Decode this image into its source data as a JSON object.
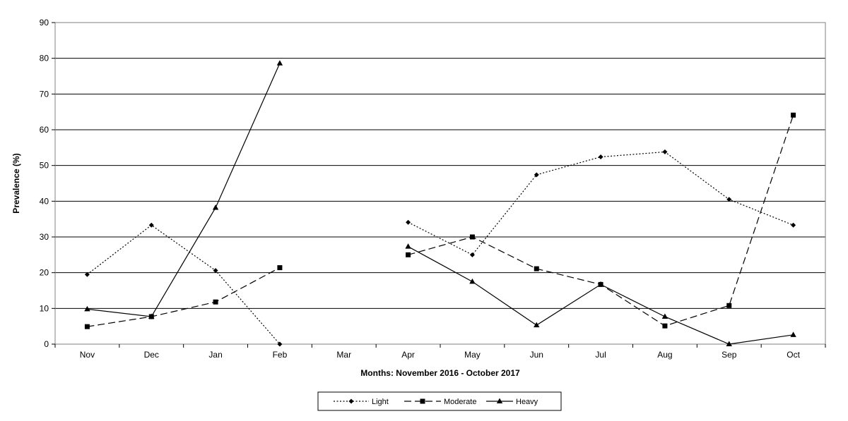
{
  "chart_data": {
    "type": "line",
    "title": "",
    "xlabel": "Months: November 2016 - October 2017",
    "ylabel": "Prevalence (%)",
    "ylim": [
      0,
      90
    ],
    "yticks": [
      0,
      10,
      20,
      30,
      40,
      50,
      60,
      70,
      80,
      90
    ],
    "grid": "horizontal",
    "legend_position": "bottom-center",
    "categories": [
      "Nov",
      "Dec",
      "Jan",
      "Feb",
      "Mar",
      "Apr",
      "May",
      "Jun",
      "Jul",
      "Aug",
      "Sep",
      "Oct"
    ],
    "series": [
      {
        "name": "Light",
        "line_style": "dotted",
        "marker": "diamond",
        "values": [
          19.5,
          33.3,
          20.6,
          0,
          null,
          34.1,
          25.0,
          47.4,
          52.4,
          53.8,
          40.5,
          33.3
        ]
      },
      {
        "name": "Moderate",
        "line_style": "dashed",
        "marker": "square",
        "values": [
          4.9,
          7.7,
          11.8,
          21.4,
          null,
          25.0,
          30.0,
          21.1,
          16.7,
          5.1,
          10.8,
          64.1
        ]
      },
      {
        "name": "Heavy",
        "line_style": "solid",
        "marker": "triangle",
        "values": [
          9.8,
          7.7,
          38.2,
          78.6,
          null,
          27.3,
          17.5,
          5.3,
          16.7,
          7.7,
          0,
          2.6
        ]
      }
    ]
  },
  "colors": {
    "line": "#000000",
    "grid": "#000000",
    "background": "#ffffff"
  }
}
